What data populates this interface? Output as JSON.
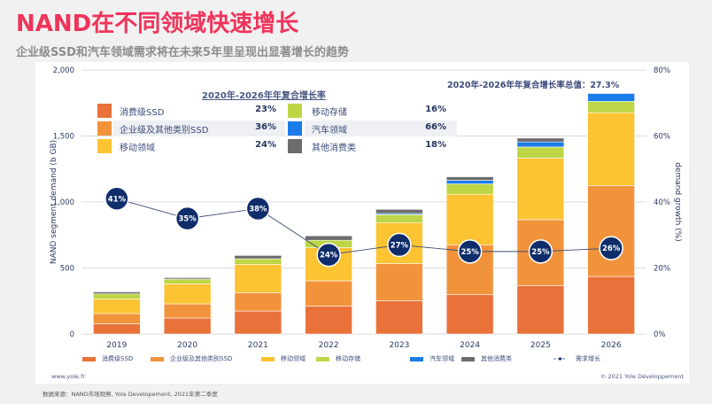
{
  "header": {
    "title": "NAND在不同领域快速增长",
    "subtitle": "企业级SSD和汽车领域需求将在未来5年里呈现出显著增长的趋势"
  },
  "colors": {
    "consumer_ssd": "#e9713a",
    "enterprise_ssd": "#f1933b",
    "mobile": "#fcc332",
    "mobile_storage": "#bdd645",
    "automotive": "#1b7ce8",
    "other_consumer": "#6c6c6c",
    "growth": "#0f2d6b",
    "title": "#f0335a"
  },
  "cagr_table": {
    "title": "2020年-2026年年复合增长率",
    "total": "2020年-2026年年复合增长率总值：27.3%",
    "rows": [
      {
        "left": {
          "label": "消费级SSD",
          "value": "23%",
          "color_key": "consumer_ssd"
        },
        "right": {
          "label": "移动存储",
          "value": "16%",
          "color_key": "mobile_storage"
        }
      },
      {
        "left": {
          "label": "企业级及其他类别SSD",
          "value": "36%",
          "color_key": "enterprise_ssd"
        },
        "right": {
          "label": "汽车领域",
          "value": "66%",
          "color_key": "automotive"
        }
      },
      {
        "left": {
          "label": "移动领域",
          "value": "24%",
          "color_key": "mobile"
        },
        "right": {
          "label": "其他消费类",
          "value": "18%",
          "color_key": "other_consumer"
        }
      }
    ]
  },
  "legend": [
    {
      "label": "消费级SSD",
      "color_key": "consumer_ssd",
      "kind": "bar"
    },
    {
      "label": "企业级及其他类别SSD",
      "color_key": "enterprise_ssd",
      "kind": "bar"
    },
    {
      "label": "移动领域",
      "color_key": "mobile",
      "kind": "bar"
    },
    {
      "label": "移动存储",
      "color_key": "mobile_storage",
      "kind": "bar"
    },
    {
      "label": "汽车领域",
      "color_key": "automotive",
      "kind": "bar"
    },
    {
      "label": "其他消费类",
      "color_key": "other_consumer",
      "kind": "bar"
    },
    {
      "label": "需求增长",
      "color_key": "growth",
      "kind": "line"
    }
  ],
  "footer": {
    "url": "www.yole.fr",
    "copyright": "© 2021 Yole Développement",
    "source": "数据来源：NAND市场观察, Yole Developement, 2021年第二季度"
  },
  "chart_data": {
    "type": "bar",
    "stacked": true,
    "title": "NAND在不同领域快速增长",
    "xlabel": "",
    "ylabel": "NAND segment demand (b GB)",
    "y2label": "demand growth (%)",
    "ylim": [
      0,
      2000
    ],
    "y2lim": [
      0,
      80
    ],
    "yticks": [
      "0",
      "500",
      "1,000",
      "1,500",
      "2,000"
    ],
    "ytick_values": [
      0,
      500,
      1000,
      1500,
      2000
    ],
    "y2ticks": [
      "0%",
      "20%",
      "40%",
      "60%",
      "80%"
    ],
    "y2tick_values": [
      0,
      20,
      40,
      60,
      80
    ],
    "grid": true,
    "legend_position": "bottom",
    "categories": [
      "2019",
      "2020",
      "2021",
      "2022",
      "2023",
      "2024",
      "2025",
      "2026"
    ],
    "series": [
      {
        "name": "消费级SSD",
        "key": "consumer_ssd",
        "values": [
          77,
          121,
          174,
          211,
          251,
          298,
          365,
          436
        ]
      },
      {
        "name": "企业级及其他类别SSD",
        "key": "enterprise_ssd",
        "values": [
          78,
          107,
          139,
          192,
          282,
          378,
          501,
          689
        ]
      },
      {
        "name": "移动领域",
        "key": "mobile",
        "values": [
          111,
          152,
          215,
          251,
          311,
          383,
          466,
          552
        ]
      },
      {
        "name": "移动存储",
        "key": "mobile_storage",
        "values": [
          38,
          36,
          42,
          56,
          60,
          78,
          85,
          85
        ]
      },
      {
        "name": "汽车领域",
        "key": "automotive",
        "values": [
          0,
          0,
          0,
          0,
          9,
          27,
          38,
          60
        ]
      },
      {
        "name": "其他消费类",
        "key": "other_consumer",
        "values": [
          15,
          11,
          25,
          34,
          31,
          27,
          29,
          0
        ]
      }
    ],
    "line_series": {
      "name": "需求增长",
      "axis": "right",
      "values": [
        41,
        35,
        38,
        24,
        27,
        25,
        25,
        26
      ],
      "labels": [
        "41%",
        "35%",
        "38%",
        "24%",
        "27%",
        "25%",
        "25%",
        "26%"
      ]
    }
  }
}
